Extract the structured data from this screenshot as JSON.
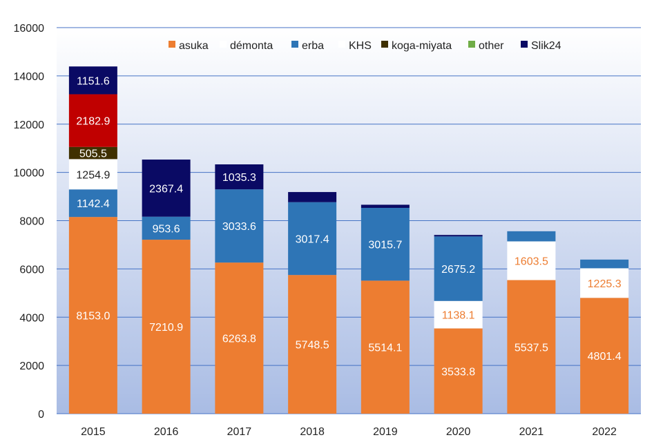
{
  "chart_data": {
    "type": "bar",
    "stacked": true,
    "title": "",
    "xlabel": "",
    "ylabel": "",
    "ylim": [
      0,
      16000
    ],
    "yticks": [
      0,
      2000,
      4000,
      6000,
      8000,
      10000,
      12000,
      14000,
      16000
    ],
    "grid": true,
    "legend_position": "top",
    "categories": [
      "2015",
      "2016",
      "2017",
      "2018",
      "2019",
      "2020",
      "2021",
      "2022"
    ],
    "series": [
      {
        "name": "asuka",
        "color": "#ED7D31",
        "label_color": "#FFFFFF",
        "values": [
          8153.0,
          7210.9,
          6263.8,
          5748.5,
          5514.1,
          3533.8,
          5537.5,
          4801.4
        ]
      },
      {
        "name": "démonta",
        "color": "#FFFFFF",
        "label_color": "#ED7D31",
        "values": [
          0,
          0,
          0,
          0,
          0,
          1138.1,
          1603.5,
          1225.3
        ]
      },
      {
        "name": "erba",
        "color": "#2E75B6",
        "label_color": "#FFFFFF",
        "values": [
          1142.4,
          953.6,
          3033.6,
          3017.4,
          3015.7,
          2675.2,
          420,
          360
        ]
      },
      {
        "name": "KHS",
        "color": "#FFFFFF",
        "label_color": "#222222",
        "values": [
          1254.9,
          0,
          0,
          0,
          0,
          0,
          0,
          0
        ]
      },
      {
        "name": "koga-miyata",
        "color": "#3F3000",
        "label_color": "#FFFFFF",
        "values": [
          505.5,
          0,
          0,
          0,
          0,
          0,
          0,
          0
        ]
      },
      {
        "name": "other",
        "color": "#70AD47",
        "label_color": "#FFFFFF",
        "values": [
          0,
          0,
          0,
          0,
          0,
          0,
          0,
          0
        ]
      },
      {
        "name": "",
        "color": "#C00000",
        "label_color": "#FFFFFF",
        "values": [
          2182.9,
          0,
          0,
          0,
          0,
          0,
          0,
          0
        ]
      },
      {
        "name": "Slik24",
        "color": "#0A0A64",
        "label_color": "#FFFFFF",
        "values": [
          1151.6,
          2367.4,
          1035.3,
          420,
          130,
          60,
          0,
          0
        ]
      }
    ],
    "data_labels": [
      {
        "category": "2015",
        "series": "asuka",
        "text": "8153.0"
      },
      {
        "category": "2015",
        "series": "erba",
        "text": "1142.4"
      },
      {
        "category": "2015",
        "series": "KHS",
        "text": "1254.9"
      },
      {
        "category": "2015",
        "series": "koga-miyata",
        "text": "505.5"
      },
      {
        "category": "2015",
        "series": "",
        "text": "2182.9"
      },
      {
        "category": "2015",
        "series": "Slik24",
        "text": "1151.6"
      },
      {
        "category": "2016",
        "series": "asuka",
        "text": "7210.9"
      },
      {
        "category": "2016",
        "series": "erba",
        "text": "953.6"
      },
      {
        "category": "2016",
        "series": "Slik24",
        "text": "2367.4"
      },
      {
        "category": "2017",
        "series": "asuka",
        "text": "6263.8"
      },
      {
        "category": "2017",
        "series": "erba",
        "text": "3033.6"
      },
      {
        "category": "2017",
        "series": "Slik24",
        "text": "1035.3"
      },
      {
        "category": "2018",
        "series": "asuka",
        "text": "5748.5"
      },
      {
        "category": "2018",
        "series": "erba",
        "text": "3017.4"
      },
      {
        "category": "2019",
        "series": "asuka",
        "text": "5514.1"
      },
      {
        "category": "2019",
        "series": "erba",
        "text": "3015.7"
      },
      {
        "category": "2020",
        "series": "asuka",
        "text": "3533.8"
      },
      {
        "category": "2020",
        "series": "démonta",
        "text": "1138.1"
      },
      {
        "category": "2020",
        "series": "erba",
        "text": "2675.2"
      },
      {
        "category": "2021",
        "series": "asuka",
        "text": "5537.5"
      },
      {
        "category": "2021",
        "series": "démonta",
        "text": "1603.5"
      },
      {
        "category": "2022",
        "series": "asuka",
        "text": "4801.4"
      },
      {
        "category": "2022",
        "series": "démonta",
        "text": "1225.3"
      }
    ],
    "colors": {
      "plot_gradient_top": "#FFFFFF",
      "plot_gradient_bottom": "#A9BCE4",
      "gridline": "#4472C4"
    }
  }
}
